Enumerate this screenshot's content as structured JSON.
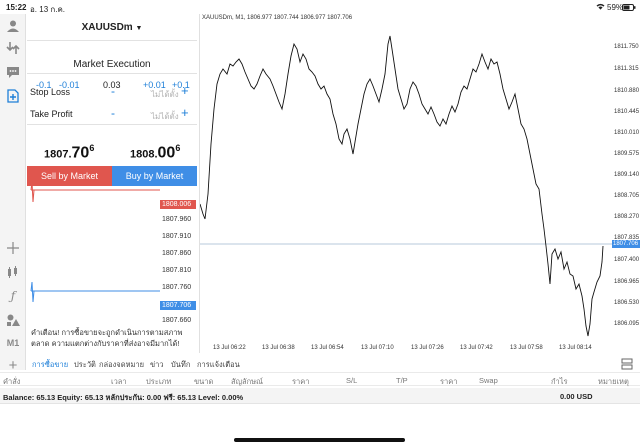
{
  "status": {
    "time": "15:22",
    "date": "อ. 13 ก.ค.",
    "battery": "59%"
  },
  "order": {
    "symbol": "XAUUSDm",
    "execution": "Market Execution",
    "steps": {
      "m1": "-0.1",
      "m2": "-0.01",
      "volume": "0.03",
      "p2": "+0.01",
      "p1": "+0.1"
    },
    "stop_loss": {
      "label": "Stop Loss",
      "placeholder": "ไม่ได้ตั้ง"
    },
    "take_profit": {
      "label": "Take Profit",
      "placeholder": "ไม่ได้ตั้ง"
    },
    "sell_price": {
      "main": "1807.",
      "big": "70",
      "sup": "6"
    },
    "buy_price": {
      "main": "1808.",
      "big": "00",
      "sup": "6"
    },
    "sell_label": "Sell by Market",
    "buy_label": "Buy by Market",
    "minus_symbol": "-",
    "plus_symbol": "+"
  },
  "mini_chart": {
    "ask_tag": "1808.006",
    "bid_tag": "1807.706",
    "levels": [
      "1807.960",
      "1807.910",
      "1807.860",
      "1807.810",
      "1807.760",
      "1807.660"
    ]
  },
  "warning": "คำเตือน! การซื้อขายจะถูกดำเนินการตามสภาพตลาด ความแตกต่างกับราคาที่ส่งอาจมีมากได้!",
  "chart": {
    "title": "XAUUSDm, M1, 1806.977 1807.744 1806.977 1807.706",
    "current_tag": "1807.706",
    "y_ticks": [
      "1811.750",
      "1811.315",
      "1810.880",
      "1810.445",
      "1810.010",
      "1809.575",
      "1809.140",
      "1808.705",
      "1808.270",
      "1807.835",
      "1807.400",
      "1806.965",
      "1806.530",
      "1806.095"
    ],
    "x_ticks": [
      "13 Jul 06:22",
      "13 Jul 06:38",
      "13 Jul 06:54",
      "13 Jul 07:10",
      "13 Jul 07:26",
      "13 Jul 07:42",
      "13 Jul 07:58",
      "13 Jul 08:14"
    ]
  },
  "timeframe": "M1",
  "tabs": [
    "การซื้อขาย",
    "ประวัติ",
    "กล่องจดหมาย",
    "ข่าว",
    "บันทึก",
    "การแจ้งเตือน"
  ],
  "columns": [
    "คำสั่ง",
    "เวลา",
    "ประเภท",
    "ขนาด",
    "สัญลักษณ์",
    "ราคา",
    "S/L",
    "T/P",
    "ราคา",
    "Swap",
    "กำไร",
    "หมายเหตุ"
  ],
  "balance": {
    "text": "Balance: 65.13 Equity: 65.13 หลักประกัน: 0.00 ฟรี: 65.13 Level: 0.00%",
    "amount": "0.00  USD"
  },
  "colors": {
    "sell": "#e0564e",
    "buy": "#3f8ee6",
    "accent": "#1e7fd8"
  }
}
